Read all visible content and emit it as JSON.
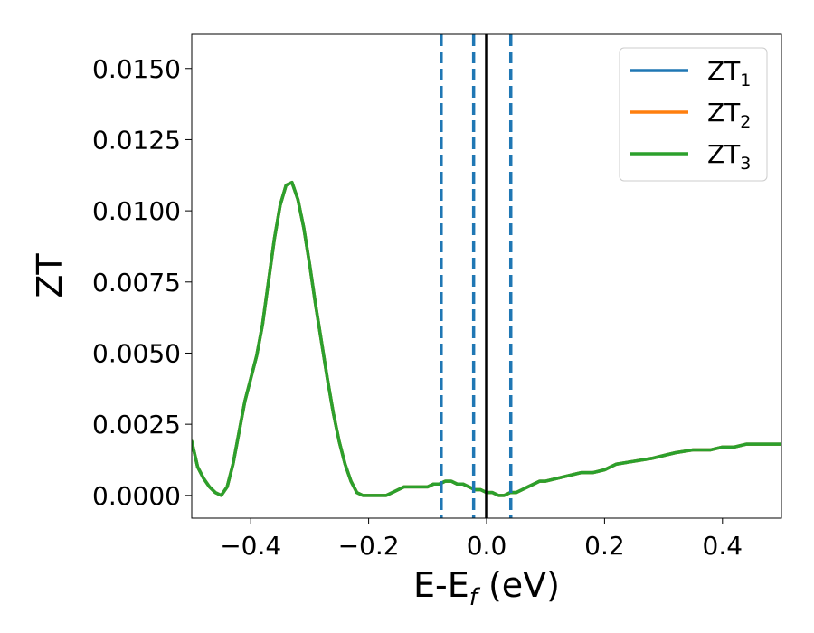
{
  "chart_data": {
    "type": "line",
    "xlabel": {
      "base": "E-E",
      "sub": "f",
      "rest": " (eV)"
    },
    "ylabel": "ZT",
    "xlim": [
      -0.5,
      0.5
    ],
    "ylim": [
      -0.0008,
      0.0162
    ],
    "xticks": [
      -0.4,
      -0.2,
      0.0,
      0.2,
      0.4
    ],
    "xtick_labels": [
      "−0.4",
      "−0.2",
      "0.0",
      "0.2",
      "0.4"
    ],
    "yticks": [
      0.0,
      0.0025,
      0.005,
      0.0075,
      0.01,
      0.0125,
      0.015
    ],
    "ytick_labels": [
      "0.0000",
      "0.0025",
      "0.0050",
      "0.0075",
      "0.0100",
      "0.0125",
      "0.0150"
    ],
    "grid": false,
    "legend_position": "top-right",
    "vertical_lines": [
      {
        "x": -0.077,
        "style": "dashed",
        "color": "#1f77b4"
      },
      {
        "x": -0.022,
        "style": "dashed",
        "color": "#1f77b4"
      },
      {
        "x": 0.041,
        "style": "dashed",
        "color": "#1f77b4"
      },
      {
        "x": 0.0,
        "style": "solid",
        "color": "#000000"
      }
    ],
    "x": [
      -0.5,
      -0.49,
      -0.48,
      -0.47,
      -0.46,
      -0.45,
      -0.44,
      -0.43,
      -0.42,
      -0.41,
      -0.4,
      -0.39,
      -0.38,
      -0.37,
      -0.36,
      -0.35,
      -0.34,
      -0.33,
      -0.32,
      -0.31,
      -0.3,
      -0.29,
      -0.28,
      -0.27,
      -0.26,
      -0.25,
      -0.24,
      -0.23,
      -0.22,
      -0.21,
      -0.2,
      -0.19,
      -0.18,
      -0.17,
      -0.16,
      -0.15,
      -0.14,
      -0.13,
      -0.12,
      -0.11,
      -0.1,
      -0.09,
      -0.08,
      -0.07,
      -0.06,
      -0.05,
      -0.04,
      -0.03,
      -0.02,
      -0.01,
      0.0,
      0.01,
      0.02,
      0.03,
      0.04,
      0.05,
      0.06,
      0.07,
      0.08,
      0.09,
      0.1,
      0.12,
      0.14,
      0.16,
      0.18,
      0.2,
      0.22,
      0.25,
      0.28,
      0.3,
      0.32,
      0.35,
      0.38,
      0.4,
      0.42,
      0.44,
      0.46,
      0.48,
      0.5
    ],
    "series": [
      {
        "name": "ZT",
        "sub": "1",
        "color": "#1f77b4",
        "values": [
          0.0019,
          0.001,
          0.0006,
          0.0003,
          0.0001,
          0.0,
          0.0003,
          0.0011,
          0.0022,
          0.0033,
          0.0041,
          0.0049,
          0.006,
          0.0075,
          0.009,
          0.0102,
          0.0109,
          0.011,
          0.0104,
          0.0094,
          0.0081,
          0.0067,
          0.0054,
          0.0041,
          0.0029,
          0.0019,
          0.0011,
          0.0005,
          0.0001,
          0.0,
          0.0,
          0.0,
          0.0,
          0.0,
          0.0001,
          0.0002,
          0.0003,
          0.0003,
          0.0003,
          0.0003,
          0.0003,
          0.0004,
          0.0004,
          0.0005,
          0.0005,
          0.0004,
          0.0004,
          0.0003,
          0.0002,
          0.0002,
          0.0001,
          0.0001,
          0.0,
          0.0,
          0.0001,
          0.0001,
          0.0002,
          0.0003,
          0.0004,
          0.0005,
          0.0005,
          0.0006,
          0.0007,
          0.0008,
          0.0008,
          0.0009,
          0.0011,
          0.0012,
          0.0013,
          0.0014,
          0.0015,
          0.0016,
          0.0016,
          0.0017,
          0.0017,
          0.0018,
          0.0018,
          0.0018,
          0.0018
        ]
      },
      {
        "name": "ZT",
        "sub": "2",
        "color": "#ff7f0e",
        "values": [
          0.0019,
          0.001,
          0.0006,
          0.0003,
          0.0001,
          0.0,
          0.0003,
          0.0011,
          0.0022,
          0.0033,
          0.0041,
          0.0049,
          0.006,
          0.0075,
          0.009,
          0.0102,
          0.0109,
          0.011,
          0.0104,
          0.0094,
          0.0081,
          0.0067,
          0.0054,
          0.0041,
          0.0029,
          0.0019,
          0.0011,
          0.0005,
          0.0001,
          0.0,
          0.0,
          0.0,
          0.0,
          0.0,
          0.0001,
          0.0002,
          0.0003,
          0.0003,
          0.0003,
          0.0003,
          0.0003,
          0.0004,
          0.0004,
          0.0005,
          0.0005,
          0.0004,
          0.0004,
          0.0003,
          0.0002,
          0.0002,
          0.0001,
          0.0001,
          0.0,
          0.0,
          0.0001,
          0.0001,
          0.0002,
          0.0003,
          0.0004,
          0.0005,
          0.0005,
          0.0006,
          0.0007,
          0.0008,
          0.0008,
          0.0009,
          0.0011,
          0.0012,
          0.0013,
          0.0014,
          0.0015,
          0.0016,
          0.0016,
          0.0017,
          0.0017,
          0.0018,
          0.0018,
          0.0018,
          0.0018
        ]
      },
      {
        "name": "ZT",
        "sub": "3",
        "color": "#2ca02c",
        "values": [
          0.0019,
          0.001,
          0.0006,
          0.0003,
          0.0001,
          0.0,
          0.0003,
          0.0011,
          0.0022,
          0.0033,
          0.0041,
          0.0049,
          0.006,
          0.0075,
          0.009,
          0.0102,
          0.0109,
          0.011,
          0.0104,
          0.0094,
          0.0081,
          0.0067,
          0.0054,
          0.0041,
          0.0029,
          0.0019,
          0.0011,
          0.0005,
          0.0001,
          0.0,
          0.0,
          0.0,
          0.0,
          0.0,
          0.0001,
          0.0002,
          0.0003,
          0.0003,
          0.0003,
          0.0003,
          0.0003,
          0.0004,
          0.0004,
          0.0005,
          0.0005,
          0.0004,
          0.0004,
          0.0003,
          0.0002,
          0.0002,
          0.0001,
          0.0001,
          0.0,
          0.0,
          0.0001,
          0.0001,
          0.0002,
          0.0003,
          0.0004,
          0.0005,
          0.0005,
          0.0006,
          0.0007,
          0.0008,
          0.0008,
          0.0009,
          0.0011,
          0.0012,
          0.0013,
          0.0014,
          0.0015,
          0.0016,
          0.0016,
          0.0017,
          0.0017,
          0.0018,
          0.0018,
          0.0018,
          0.0018
        ]
      }
    ]
  }
}
